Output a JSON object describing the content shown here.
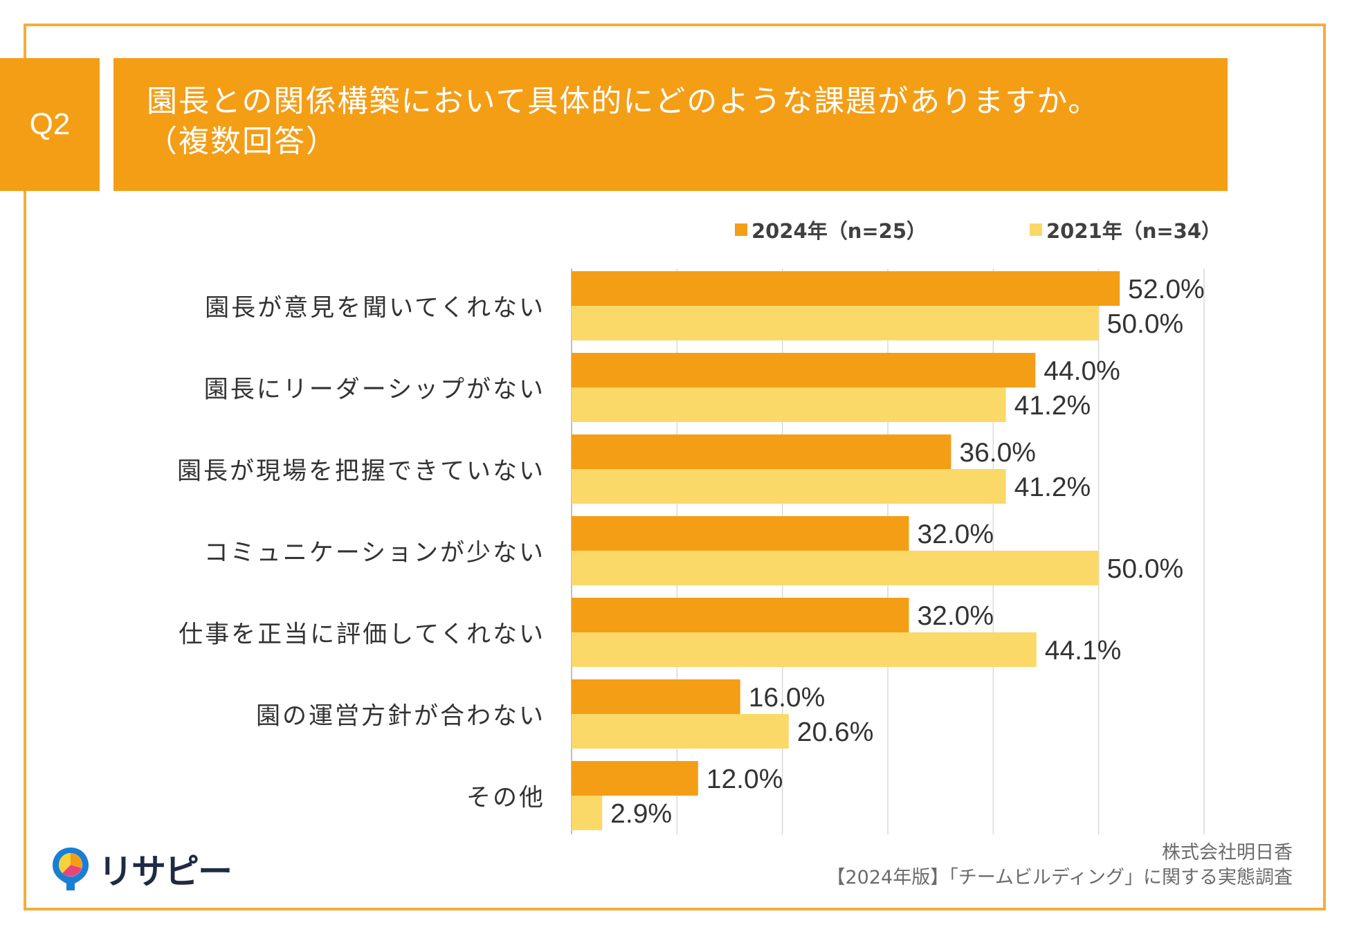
{
  "question_badge": "Q2",
  "title": {
    "line1": "園長との関係構築において具体的にどのような課題がありますか。",
    "line2": "（複数回答）"
  },
  "colors": {
    "primary": "#f49e16",
    "series_2024": "#f49e16",
    "series_2021": "#fbd968",
    "frame": "#f2ae3c"
  },
  "chart_data": {
    "type": "bar",
    "orientation": "horizontal",
    "categories": [
      "園長が意見を聞いてくれない",
      "園長にリーダーシップがない",
      "園長が現場を把握できていない",
      "コミュニケーションが少ない",
      "仕事を正当に評価してくれない",
      "園の運営方針が合わない",
      "その他"
    ],
    "series": [
      {
        "name": "2024年（n=25）",
        "color": "#f49e16",
        "values": [
          52.0,
          44.0,
          36.0,
          32.0,
          32.0,
          16.0,
          12.0
        ],
        "labels": [
          "52.0%",
          "44.0%",
          "36.0%",
          "32.0%",
          "32.0%",
          "16.0%",
          "12.0%"
        ]
      },
      {
        "name": "2021年（n=34）",
        "color": "#fbd968",
        "values": [
          50.0,
          41.2,
          41.2,
          50.0,
          44.1,
          20.6,
          2.9
        ],
        "labels": [
          "50.0%",
          "41.2%",
          "41.2%",
          "50.0%",
          "44.1%",
          "20.6%",
          "2.9%"
        ]
      }
    ],
    "xlim": [
      0,
      60
    ],
    "gridlines": [
      0,
      10,
      20,
      30,
      40,
      50,
      60
    ],
    "legend_position": "top-right",
    "unit": "%"
  },
  "credit": {
    "company": "株式会社明日香",
    "survey": "【2024年版】「チームビルディング」に関する実態調査"
  },
  "logo": {
    "text": "リサピー"
  }
}
